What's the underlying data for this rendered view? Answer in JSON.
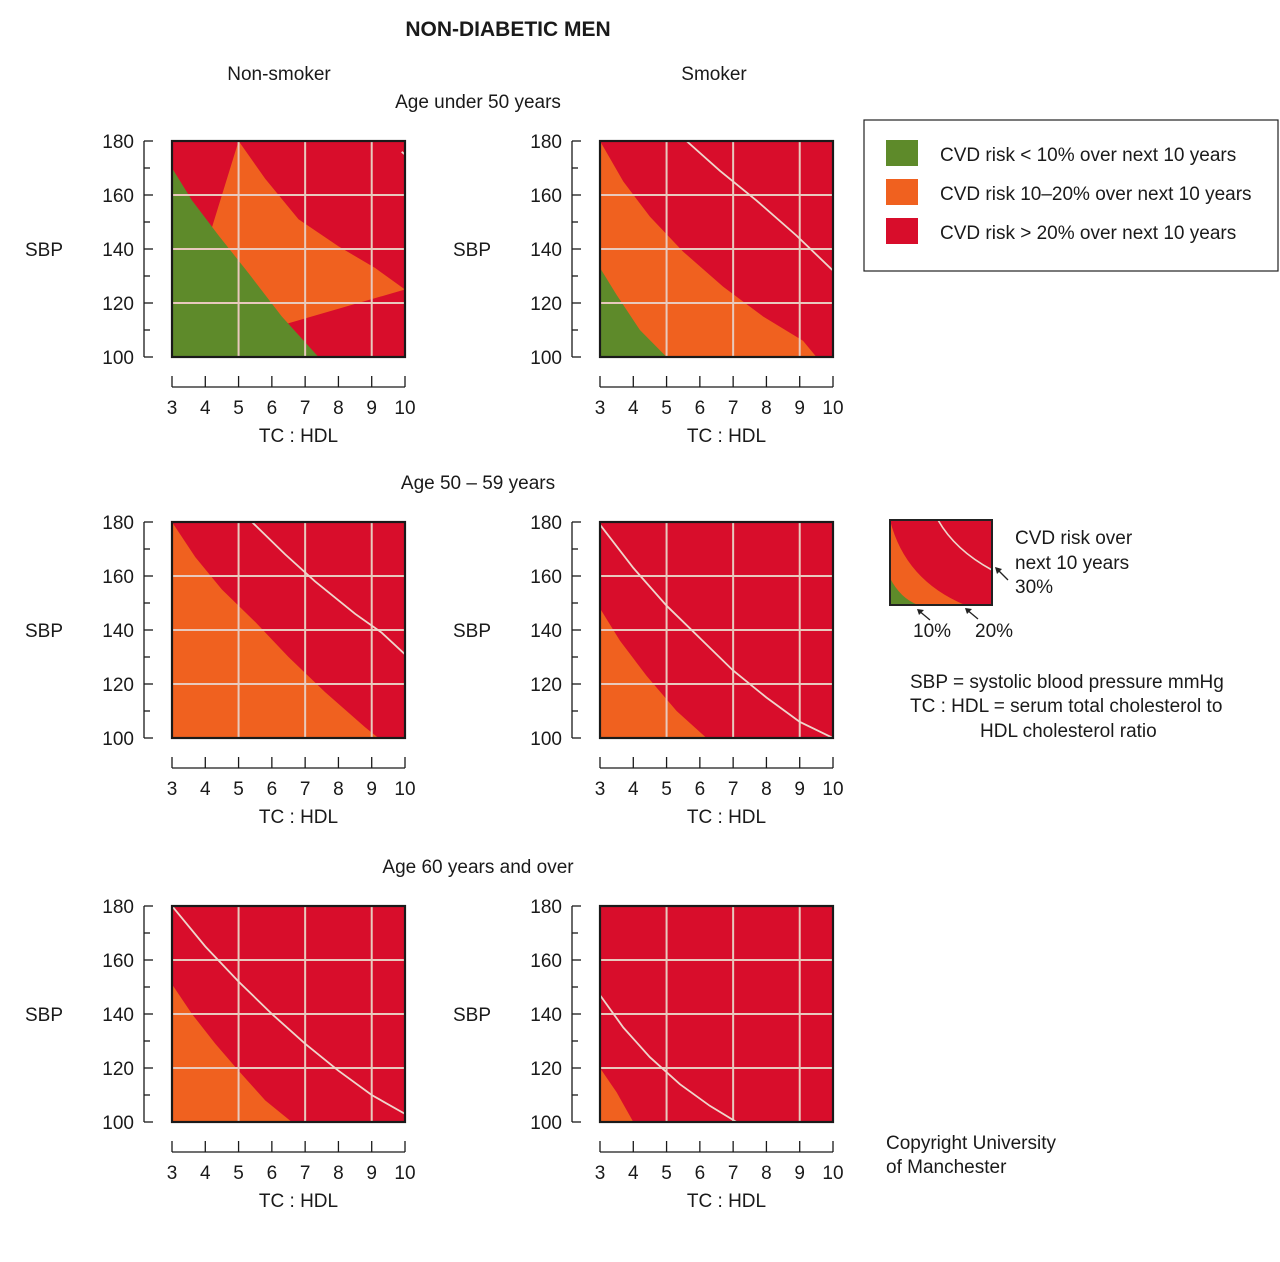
{
  "title": "NON-DIABETIC MEN",
  "column_headers": [
    "Non-smoker",
    "Smoker"
  ],
  "row_headers": [
    "Age under 50 years",
    "Age 50 – 59 years",
    "Age 60 years and over"
  ],
  "colors": {
    "low": "#5e8a2a",
    "mid": "#f0611f",
    "high": "#d80d2b",
    "grid": "#e8c9bd",
    "curve30": "#efd6cc"
  },
  "legend": {
    "items": [
      {
        "key": "low",
        "label": "CVD risk < 10% over next 10 years"
      },
      {
        "key": "mid",
        "label": "CVD risk 10–20% over next 10 years"
      },
      {
        "key": "high",
        "label": "CVD risk > 20% over next 10 years"
      }
    ]
  },
  "key_diagram": {
    "label_lines": [
      "CVD risk over",
      "next 10 years",
      "30%"
    ],
    "label_10": "10%",
    "label_20": "20%"
  },
  "definitions": {
    "sbp": "SBP = systolic blood pressure mmHg",
    "tc_hdl_1": "TC : HDL = serum total cholesterol to",
    "tc_hdl_2": "HDL cholesterol ratio"
  },
  "copyright": [
    "Copyright University",
    "of Manchester"
  ],
  "chart_data": [
    {
      "type": "area",
      "row": 0,
      "col": 0,
      "age_group": "Age under 50 years",
      "smoking": "Non-smoker",
      "xlabel": "TC : HDL",
      "ylabel": "SBP",
      "xlim": [
        3,
        10
      ],
      "ylim": [
        100,
        180
      ],
      "x_ticks": [
        3,
        4,
        5,
        6,
        7,
        8,
        9,
        10
      ],
      "y_ticks": [
        100,
        120,
        140,
        160,
        180
      ],
      "risk_10_boundary": [
        [
          3,
          170
        ],
        [
          3.6,
          158
        ],
        [
          4.4,
          145
        ],
        [
          5.3,
          131
        ],
        [
          6.3,
          115
        ],
        [
          7.4,
          100
        ]
      ],
      "risk_20_boundary": [
        [
          5,
          180
        ],
        [
          5.8,
          166
        ],
        [
          6.8,
          151
        ],
        [
          8,
          141
        ],
        [
          9.1,
          133
        ],
        [
          10,
          125
        ]
      ],
      "risk_30_boundary": [
        [
          9.9,
          176
        ],
        [
          10,
          175
        ]
      ]
    },
    {
      "type": "area",
      "row": 0,
      "col": 1,
      "age_group": "Age under 50 years",
      "smoking": "Smoker",
      "xlabel": "TC : HDL",
      "ylabel": "SBP",
      "xlim": [
        3,
        10
      ],
      "ylim": [
        100,
        180
      ],
      "x_ticks": [
        3,
        4,
        5,
        6,
        7,
        8,
        9,
        10
      ],
      "y_ticks": [
        100,
        120,
        140,
        160,
        180
      ],
      "risk_10_boundary": [
        [
          3,
          133
        ],
        [
          3.5,
          123
        ],
        [
          4.2,
          110
        ],
        [
          5,
          100
        ]
      ],
      "risk_20_boundary": [
        [
          3,
          180
        ],
        [
          3.7,
          165
        ],
        [
          4.5,
          152
        ],
        [
          5.5,
          139
        ],
        [
          6.7,
          126
        ],
        [
          7.9,
          115
        ],
        [
          9.1,
          106
        ],
        [
          9.5,
          100
        ]
      ],
      "risk_30_boundary": [
        [
          5.6,
          180
        ],
        [
          6.6,
          169
        ],
        [
          7.7,
          158
        ],
        [
          8.9,
          145
        ],
        [
          10,
          132
        ]
      ]
    },
    {
      "type": "area",
      "row": 1,
      "col": 0,
      "age_group": "Age 50 – 59 years",
      "smoking": "Non-smoker",
      "xlabel": "TC : HDL",
      "ylabel": "SBP",
      "xlim": [
        3,
        10
      ],
      "ylim": [
        100,
        180
      ],
      "x_ticks": [
        3,
        4,
        5,
        6,
        7,
        8,
        9,
        10
      ],
      "y_ticks": [
        100,
        120,
        140,
        160,
        180
      ],
      "risk_10_boundary": [],
      "risk_20_boundary": [
        [
          3,
          180
        ],
        [
          3.7,
          167
        ],
        [
          4.5,
          155
        ],
        [
          5.5,
          143
        ],
        [
          6.5,
          130
        ],
        [
          7.6,
          117
        ],
        [
          8.8,
          104
        ],
        [
          9.2,
          100
        ]
      ],
      "risk_30_boundary": [
        [
          5.4,
          180
        ],
        [
          6.4,
          168
        ],
        [
          7.3,
          158
        ],
        [
          8.5,
          146
        ],
        [
          9.3,
          139
        ],
        [
          10,
          131
        ]
      ]
    },
    {
      "type": "area",
      "row": 1,
      "col": 1,
      "age_group": "Age 50 – 59 years",
      "smoking": "Smoker",
      "xlabel": "TC : HDL",
      "ylabel": "SBP",
      "xlim": [
        3,
        10
      ],
      "ylim": [
        100,
        180
      ],
      "x_ticks": [
        3,
        4,
        5,
        6,
        7,
        8,
        9,
        10
      ],
      "y_ticks": [
        100,
        120,
        140,
        160,
        180
      ],
      "risk_10_boundary": [],
      "risk_20_boundary": [
        [
          3,
          148
        ],
        [
          3.6,
          136
        ],
        [
          4.4,
          123
        ],
        [
          5.3,
          110
        ],
        [
          6.2,
          100
        ]
      ],
      "risk_30_boundary": [
        [
          3,
          179
        ],
        [
          4,
          163
        ],
        [
          5,
          149
        ],
        [
          6,
          137
        ],
        [
          7,
          125
        ],
        [
          8,
          115
        ],
        [
          9,
          106
        ],
        [
          10,
          100
        ]
      ]
    },
    {
      "type": "area",
      "row": 2,
      "col": 0,
      "age_group": "Age 60 years and over",
      "smoking": "Non-smoker",
      "xlabel": "TC : HDL",
      "ylabel": "SBP",
      "xlim": [
        3,
        10
      ],
      "ylim": [
        100,
        180
      ],
      "x_ticks": [
        3,
        4,
        5,
        6,
        7,
        8,
        9,
        10
      ],
      "y_ticks": [
        100,
        120,
        140,
        160,
        180
      ],
      "risk_10_boundary": [],
      "risk_20_boundary": [
        [
          3,
          151
        ],
        [
          3.6,
          140
        ],
        [
          4.3,
          129
        ],
        [
          5,
          119
        ],
        [
          5.8,
          108
        ],
        [
          6.6,
          100
        ]
      ],
      "risk_30_boundary": [
        [
          3,
          180
        ],
        [
          4,
          165
        ],
        [
          5,
          152
        ],
        [
          6,
          140
        ],
        [
          7,
          129
        ],
        [
          8,
          119
        ],
        [
          9,
          110
        ],
        [
          10,
          103
        ]
      ]
    },
    {
      "type": "area",
      "row": 2,
      "col": 1,
      "age_group": "Age 60 years and over",
      "smoking": "Smoker",
      "xlabel": "TC : HDL",
      "ylabel": "SBP",
      "xlim": [
        3,
        10
      ],
      "ylim": [
        100,
        180
      ],
      "x_ticks": [
        3,
        4,
        5,
        6,
        7,
        8,
        9,
        10
      ],
      "y_ticks": [
        100,
        120,
        140,
        160,
        180
      ],
      "risk_10_boundary": [],
      "risk_20_boundary": [
        [
          3,
          120
        ],
        [
          3.5,
          111
        ],
        [
          4,
          100
        ]
      ],
      "risk_30_boundary": [
        [
          3,
          147
        ],
        [
          3.7,
          135
        ],
        [
          4.5,
          124
        ],
        [
          5.4,
          114
        ],
        [
          6.3,
          106
        ],
        [
          7.1,
          100
        ]
      ]
    }
  ]
}
